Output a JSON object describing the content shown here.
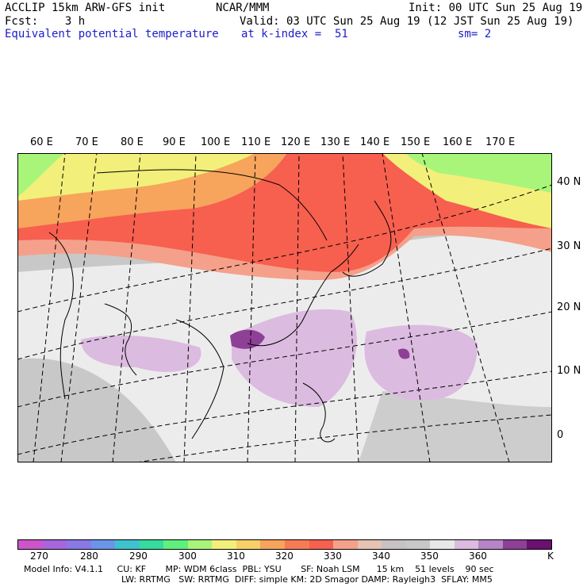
{
  "header": {
    "model_line": "ACCLIP 15km ARW-GFS init",
    "center": "NCAR/MMM",
    "init": "Init: 00 UTC Sun 25 Aug 19",
    "fcst": "Fcst:    3 h",
    "valid": "Valid: 03 UTC Sun 25 Aug 19 (12 JST Sun 25 Aug 19)",
    "field": "Equivalent potential temperature",
    "level": "at k-index =  51",
    "smooth": "sm= 2"
  },
  "map": {
    "lon_labels": [
      "60 E",
      "70 E",
      "80 E",
      "90 E",
      "100 E",
      "110 E",
      "120 E",
      "130 E",
      "140 E",
      "150 E",
      "160 E",
      "170 E"
    ],
    "lat_labels": [
      "40 N",
      "30 N",
      "20 N",
      "10 N",
      "0"
    ]
  },
  "colorbar": {
    "colors": [
      "#cc55cc",
      "#a866dd",
      "#8a78e6",
      "#6a95e8",
      "#3fc2cf",
      "#36dba0",
      "#5ff07e",
      "#a8f57a",
      "#f2f07a",
      "#f7d068",
      "#f7a45c",
      "#f77b55",
      "#f75f4f",
      "#f5a08a",
      "#e6c3b3",
      "#c8c2c2",
      "#c8c8c8",
      "#e8e8e8",
      "#dcbbe0",
      "#b784c7",
      "#8e3f96",
      "#6a1070"
    ],
    "ticks": [
      "270",
      "280",
      "290",
      "300",
      "310",
      "320",
      "330",
      "340",
      "350",
      "360"
    ],
    "unit": "K"
  },
  "footer": {
    "line1": "Model Info: V4.1.1     CU: KF       MP: WDM 6class  PBL: YSU       SF: Noah LSM      15 km    51 levels    90 sec",
    "line2": "LW: RRTMG   SW: RRTMG  DIFF: simple KM: 2D Smagor DAMP: Rayleigh3  SFLAY: MM5"
  }
}
